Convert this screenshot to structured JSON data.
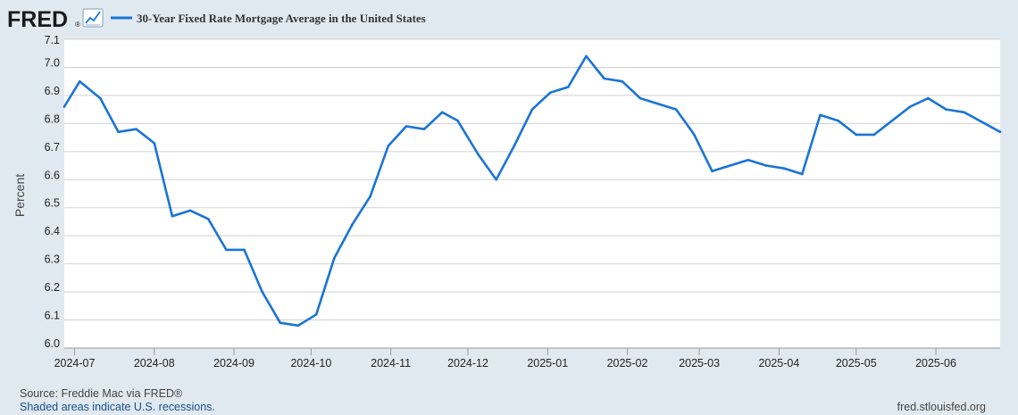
{
  "branding": {
    "logo_text": "FRED",
    "logo_registered": "®",
    "site": "fred.stlouisfed.org"
  },
  "colors": {
    "series": "#1a74d6",
    "background": "#e1e9f0",
    "plot_bg": "#ffffff",
    "grid": "#d0d0d0"
  },
  "footer": {
    "source": "Source: Freddie Mac via FRED®",
    "note": "Shaded areas indicate U.S. recessions."
  },
  "chart_data": {
    "type": "line",
    "title": "30-Year Fixed Rate Mortgage Average in the United States",
    "xlabel": "",
    "ylabel": "Percent",
    "ylim": [
      6.0,
      7.1
    ],
    "grid": true,
    "legend": "top-left",
    "yticks": [
      "6.0",
      "6.1",
      "6.2",
      "6.3",
      "6.4",
      "6.5",
      "6.6",
      "6.7",
      "6.8",
      "6.9",
      "7.0",
      "7.1"
    ],
    "xticks": [
      {
        "label": "2024-07",
        "date": "2024-07-01"
      },
      {
        "label": "2024-08",
        "date": "2024-08-01"
      },
      {
        "label": "2024-09",
        "date": "2024-09-01"
      },
      {
        "label": "2024-10",
        "date": "2024-10-01"
      },
      {
        "label": "2024-11",
        "date": "2024-11-01"
      },
      {
        "label": "2024-12",
        "date": "2024-12-01"
      },
      {
        "label": "2025-01",
        "date": "2025-01-01"
      },
      {
        "label": "2025-02",
        "date": "2025-02-01"
      },
      {
        "label": "2025-03",
        "date": "2025-03-01"
      },
      {
        "label": "2025-04",
        "date": "2025-04-01"
      },
      {
        "label": "2025-05",
        "date": "2025-05-01"
      },
      {
        "label": "2025-06",
        "date": "2025-06-01"
      }
    ],
    "xlim": [
      "2024-06-27",
      "2025-06-26"
    ],
    "series": [
      {
        "name": "30-Year Fixed Rate Mortgage Average in the United States",
        "points": [
          [
            "2024-06-27",
            6.86
          ],
          [
            "2024-07-03",
            6.95
          ],
          [
            "2024-07-11",
            6.89
          ],
          [
            "2024-07-18",
            6.77
          ],
          [
            "2024-07-25",
            6.78
          ],
          [
            "2024-08-01",
            6.73
          ],
          [
            "2024-08-08",
            6.47
          ],
          [
            "2024-08-15",
            6.49
          ],
          [
            "2024-08-22",
            6.46
          ],
          [
            "2024-08-29",
            6.35
          ],
          [
            "2024-09-05",
            6.35
          ],
          [
            "2024-09-12",
            6.2
          ],
          [
            "2024-09-19",
            6.09
          ],
          [
            "2024-09-26",
            6.08
          ],
          [
            "2024-10-03",
            6.12
          ],
          [
            "2024-10-10",
            6.32
          ],
          [
            "2024-10-17",
            6.44
          ],
          [
            "2024-10-24",
            6.54
          ],
          [
            "2024-10-31",
            6.72
          ],
          [
            "2024-11-07",
            6.79
          ],
          [
            "2024-11-14",
            6.78
          ],
          [
            "2024-11-21",
            6.84
          ],
          [
            "2024-11-27",
            6.81
          ],
          [
            "2024-12-05",
            6.69
          ],
          [
            "2024-12-12",
            6.6
          ],
          [
            "2024-12-19",
            6.72
          ],
          [
            "2024-12-26",
            6.85
          ],
          [
            "2025-01-02",
            6.91
          ],
          [
            "2025-01-09",
            6.93
          ],
          [
            "2025-01-16",
            7.04
          ],
          [
            "2025-01-23",
            6.96
          ],
          [
            "2025-01-30",
            6.95
          ],
          [
            "2025-02-06",
            6.89
          ],
          [
            "2025-02-20",
            6.85
          ],
          [
            "2025-02-27",
            6.76
          ],
          [
            "2025-03-06",
            6.63
          ],
          [
            "2025-03-20",
            6.67
          ],
          [
            "2025-03-27",
            6.65
          ],
          [
            "2025-04-03",
            6.64
          ],
          [
            "2025-04-10",
            6.62
          ],
          [
            "2025-04-17",
            6.83
          ],
          [
            "2025-04-24",
            6.81
          ],
          [
            "2025-05-01",
            6.76
          ],
          [
            "2025-05-08",
            6.76
          ],
          [
            "2025-05-22",
            6.86
          ],
          [
            "2025-05-29",
            6.89
          ],
          [
            "2025-06-05",
            6.85
          ],
          [
            "2025-06-12",
            6.84
          ],
          [
            "2025-06-26",
            6.77
          ]
        ]
      }
    ]
  }
}
